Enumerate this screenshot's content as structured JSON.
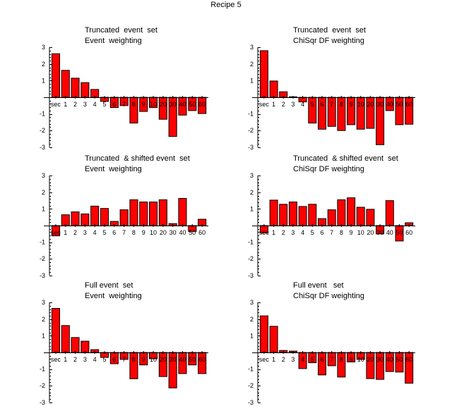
{
  "figure_title": "Recipe 5",
  "colors": {
    "bar_fill": "#ff0000",
    "bar_stroke": "#000000",
    "axis": "#000000"
  },
  "chart_data": [
    {
      "type": "bar",
      "title": [
        "Truncated  event  set",
        "Event  weighting"
      ],
      "xlabel": "",
      "ylabel": "",
      "ylim": [
        -3,
        3
      ],
      "yticks": [
        3,
        2,
        1,
        -1,
        -2,
        -3
      ],
      "categories": [
        "sec",
        "1",
        "2",
        "3",
        "4",
        "5",
        "6",
        "7",
        "8",
        "9",
        "10",
        "20",
        "30",
        "40",
        "50",
        "60"
      ],
      "values": [
        2.62,
        1.62,
        1.15,
        0.88,
        0.47,
        -0.25,
        -0.62,
        -0.5,
        -1.55,
        -0.85,
        -0.62,
        -1.32,
        -2.35,
        -1.07,
        -0.8,
        -0.98
      ]
    },
    {
      "type": "bar",
      "title": [
        "Truncated  event  set",
        "ChiSqr DF weighting"
      ],
      "xlabel": "",
      "ylabel": "",
      "ylim": [
        -3,
        3
      ],
      "yticks": [
        3,
        2,
        1,
        -1,
        -2,
        -3
      ],
      "categories": [
        "sec",
        "1",
        "2",
        "3",
        "4",
        "5",
        "6",
        "7",
        "8",
        "9",
        "10",
        "20",
        "30",
        "40",
        "50",
        "60"
      ],
      "values": [
        2.8,
        0.98,
        0.33,
        0.03,
        -0.28,
        -1.55,
        -1.92,
        -1.75,
        -2.0,
        -1.65,
        -1.92,
        -1.87,
        -2.85,
        -0.8,
        -1.65,
        -1.62
      ]
    },
    {
      "type": "bar",
      "title": [
        "Truncated  & shifted event  set",
        "Event  weighting"
      ],
      "xlabel": "",
      "ylabel": "",
      "ylim": [
        -3,
        3
      ],
      "yticks": [
        3,
        2,
        1,
        -1,
        -2,
        -3
      ],
      "categories": [
        "sec",
        "1",
        "2",
        "3",
        "4",
        "5",
        "6",
        "7",
        "8",
        "9",
        "10",
        "20",
        "30",
        "40",
        "50",
        "60"
      ],
      "values": [
        -0.62,
        0.65,
        0.82,
        0.7,
        1.17,
        1.03,
        0.25,
        0.95,
        1.55,
        1.42,
        1.42,
        1.55,
        0.12,
        1.63,
        -0.35,
        0.38
      ]
    },
    {
      "type": "bar",
      "title": [
        "Truncated  & shifted event  set",
        "ChiSqr DF weighting"
      ],
      "xlabel": "",
      "ylabel": "",
      "ylim": [
        -3,
        3
      ],
      "yticks": [
        3,
        2,
        1,
        -1,
        -2,
        -3
      ],
      "categories": [
        "sec",
        "1",
        "2",
        "3",
        "4",
        "5",
        "6",
        "7",
        "8",
        "9",
        "10",
        "20",
        "30",
        "40",
        "50",
        "60"
      ],
      "values": [
        -0.45,
        1.53,
        1.28,
        1.42,
        1.15,
        1.28,
        0.42,
        0.95,
        1.55,
        1.67,
        1.1,
        0.98,
        -0.5,
        1.5,
        -0.93,
        0.17
      ]
    },
    {
      "type": "bar",
      "title": [
        "Full event  set",
        "Event  weighting"
      ],
      "xlabel": "",
      "ylabel": "",
      "ylim": [
        -3,
        3
      ],
      "yticks": [
        3,
        2,
        1,
        -1,
        -2,
        -3
      ],
      "categories": [
        "sec",
        "1",
        "2",
        "3",
        "4",
        "5",
        "6",
        "7",
        "8",
        "9",
        "10",
        "20",
        "30",
        "40",
        "50",
        "60"
      ],
      "values": [
        2.65,
        1.62,
        0.9,
        0.68,
        0.17,
        -0.3,
        -0.68,
        -0.42,
        -1.58,
        -0.75,
        -0.38,
        -1.45,
        -2.13,
        -1.27,
        -0.75,
        -1.27
      ]
    },
    {
      "type": "bar",
      "title": [
        "Full event   set",
        "ChiSqr DF weighting"
      ],
      "xlabel": "",
      "ylabel": "",
      "ylim": [
        -3,
        3
      ],
      "yticks": [
        3,
        2,
        1,
        -1,
        -2,
        -3
      ],
      "categories": [
        "sec",
        "1",
        "2",
        "3",
        "4",
        "5",
        "6",
        "7",
        "8",
        "9",
        "10",
        "20",
        "30",
        "40",
        "50",
        "60"
      ],
      "values": [
        2.2,
        1.57,
        0.12,
        0.08,
        -0.97,
        -0.62,
        -1.35,
        -0.8,
        -1.48,
        -0.57,
        -0.42,
        -1.57,
        -1.62,
        -1.15,
        -1.18,
        -1.85
      ]
    }
  ]
}
